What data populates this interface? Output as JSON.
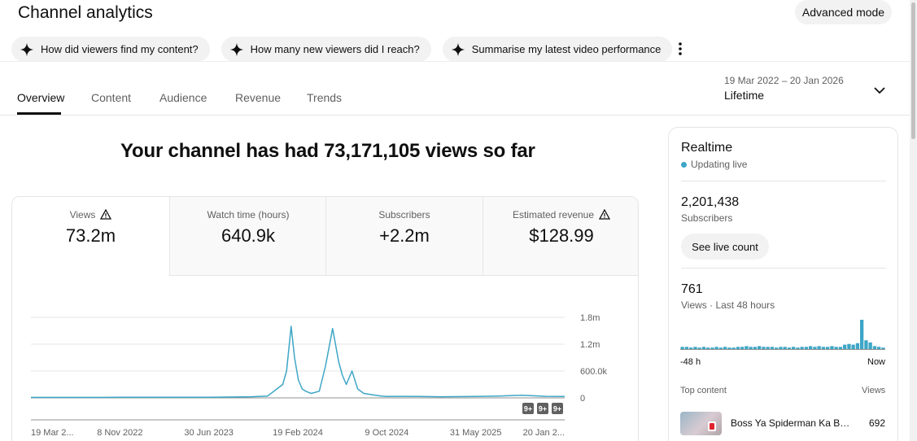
{
  "header": {
    "title": "Channel analytics",
    "advanced_mode": "Advanced mode"
  },
  "chips": [
    {
      "label": "How did viewers find my content?"
    },
    {
      "label": "How many new viewers did I reach?"
    },
    {
      "label": "Summarise my latest video performance"
    }
  ],
  "tabs": [
    {
      "label": "Overview",
      "active": true
    },
    {
      "label": "Content"
    },
    {
      "label": "Audience"
    },
    {
      "label": "Revenue"
    },
    {
      "label": "Trends"
    }
  ],
  "date": {
    "range": "19 Mar 2022 – 20 Jan 2026",
    "preset": "Lifetime"
  },
  "headline": "Your channel has had 73,171,105 views so far",
  "metrics": [
    {
      "label": "Views",
      "value": "73.2m",
      "warning": true
    },
    {
      "label": "Watch time (hours)",
      "value": "640.9k"
    },
    {
      "label": "Subscribers",
      "value": "+2.2m"
    },
    {
      "label": "Estimated revenue",
      "value": "$128.99",
      "warning": true
    }
  ],
  "chart_data": {
    "type": "line",
    "series_color": "#3ea6c6",
    "y_ticks": [
      "1.8m",
      "1.2m",
      "600.0k",
      "0"
    ],
    "ylim": [
      0,
      1800000
    ],
    "x_ticks": [
      "19 Mar 2...",
      "8 Nov 2022",
      "30 Jun 2023",
      "19 Feb 2024",
      "9 Oct 2024",
      "31 May 2025",
      "20 Jan 2..."
    ],
    "x": [
      "2022-03-19",
      "2022-11-08",
      "2023-06-30",
      "2023-10-20",
      "2023-12-01",
      "2024-01-10",
      "2024-01-20",
      "2024-02-01",
      "2024-02-10",
      "2024-02-20",
      "2024-03-01",
      "2024-03-10",
      "2024-03-25",
      "2024-04-15",
      "2024-05-01",
      "2024-05-20",
      "2024-06-05",
      "2024-06-15",
      "2024-06-25",
      "2024-07-10",
      "2024-07-25",
      "2024-08-10",
      "2024-08-25",
      "2024-09-10",
      "2024-09-25",
      "2024-10-09",
      "2024-11-15",
      "2025-01-01",
      "2025-03-01",
      "2025-05-31",
      "2025-08-01",
      "2025-10-01",
      "2025-12-01",
      "2026-01-20"
    ],
    "y": [
      10000,
      12000,
      15000,
      25000,
      40000,
      300000,
      600000,
      1600000,
      900000,
      400000,
      200000,
      150000,
      100000,
      150000,
      700000,
      1550000,
      800000,
      500000,
      300000,
      600000,
      200000,
      100000,
      80000,
      60000,
      40000,
      30000,
      35000,
      30000,
      25000,
      30000,
      40000,
      60000,
      35000,
      30000
    ],
    "annotations": [
      "9+",
      "9+",
      "9+"
    ]
  },
  "realtime": {
    "title": "Realtime",
    "status": "Updating live",
    "subscribers_value": "2,201,438",
    "subscribers_label": "Subscribers",
    "live_button": "See live count",
    "views_value": "761",
    "views_label": "Views · Last 48 hours",
    "mini_start": "-48 h",
    "mini_end": "Now",
    "hourly_views": [
      3,
      3,
      2,
      3,
      2,
      3,
      2,
      2,
      3,
      2,
      3,
      2,
      2,
      3,
      3,
      4,
      3,
      3,
      4,
      3,
      3,
      3,
      2,
      3,
      3,
      2,
      3,
      2,
      3,
      3,
      4,
      3,
      4,
      3,
      3,
      4,
      3,
      3,
      6,
      7,
      6,
      8,
      40,
      12,
      9,
      4,
      3,
      2
    ],
    "top_content_label": "Top content",
    "views_col_label": "Views",
    "top_items": [
      {
        "title": "Boss Ya Spiderman Ka Bha...",
        "views": "692"
      }
    ]
  }
}
